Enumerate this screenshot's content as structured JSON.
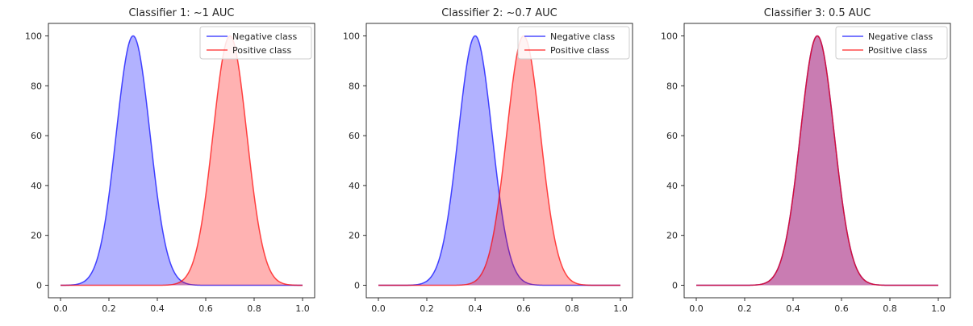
{
  "chart_data": [
    {
      "type": "area",
      "title": "Classifier 1: ~1 AUC",
      "xlim": [
        0.0,
        1.0
      ],
      "ylim": [
        -5,
        105
      ],
      "x_ticks": [
        "0.0",
        "0.2",
        "0.4",
        "0.6",
        "0.8",
        "1.0"
      ],
      "y_ticks": [
        "0",
        "20",
        "40",
        "60",
        "80",
        "100"
      ],
      "legend_position": "top-right",
      "series": [
        {
          "name": "Negative class",
          "color": "#0000ff",
          "fill": "#aeaefd",
          "mean": 0.3,
          "peak": 100,
          "sd": 0.07
        },
        {
          "name": "Positive class",
          "color": "#ff0000",
          "fill": "#fdaeae",
          "mean": 0.7,
          "peak": 100,
          "sd": 0.07
        }
      ]
    },
    {
      "type": "area",
      "title": "Classifier 2: ~0.7 AUC",
      "xlim": [
        0.0,
        1.0
      ],
      "ylim": [
        -5,
        105
      ],
      "x_ticks": [
        "0.0",
        "0.2",
        "0.4",
        "0.6",
        "0.8",
        "1.0"
      ],
      "y_ticks": [
        "0",
        "20",
        "40",
        "60",
        "80",
        "100"
      ],
      "legend_position": "top-right",
      "series": [
        {
          "name": "Negative class",
          "color": "#0000ff",
          "fill": "#aeaefd",
          "mean": 0.4,
          "peak": 100,
          "sd": 0.07
        },
        {
          "name": "Positive class",
          "color": "#ff0000",
          "fill": "#fdaeae",
          "mean": 0.6,
          "peak": 100,
          "sd": 0.07
        }
      ]
    },
    {
      "type": "area",
      "title": "Classifier 3: 0.5 AUC",
      "xlim": [
        0.0,
        1.0
      ],
      "ylim": [
        -5,
        105
      ],
      "x_ticks": [
        "0.0",
        "0.2",
        "0.4",
        "0.6",
        "0.8",
        "1.0"
      ],
      "y_ticks": [
        "0",
        "20",
        "40",
        "60",
        "80",
        "100"
      ],
      "legend_position": "top-right",
      "series": [
        {
          "name": "Negative class",
          "color": "#0000ff",
          "fill": "#aeaefd",
          "mean": 0.5,
          "peak": 100,
          "sd": 0.07
        },
        {
          "name": "Positive class",
          "color": "#ff0000",
          "fill": "#fdaeae",
          "mean": 0.5,
          "peak": 100,
          "sd": 0.07
        }
      ]
    }
  ]
}
